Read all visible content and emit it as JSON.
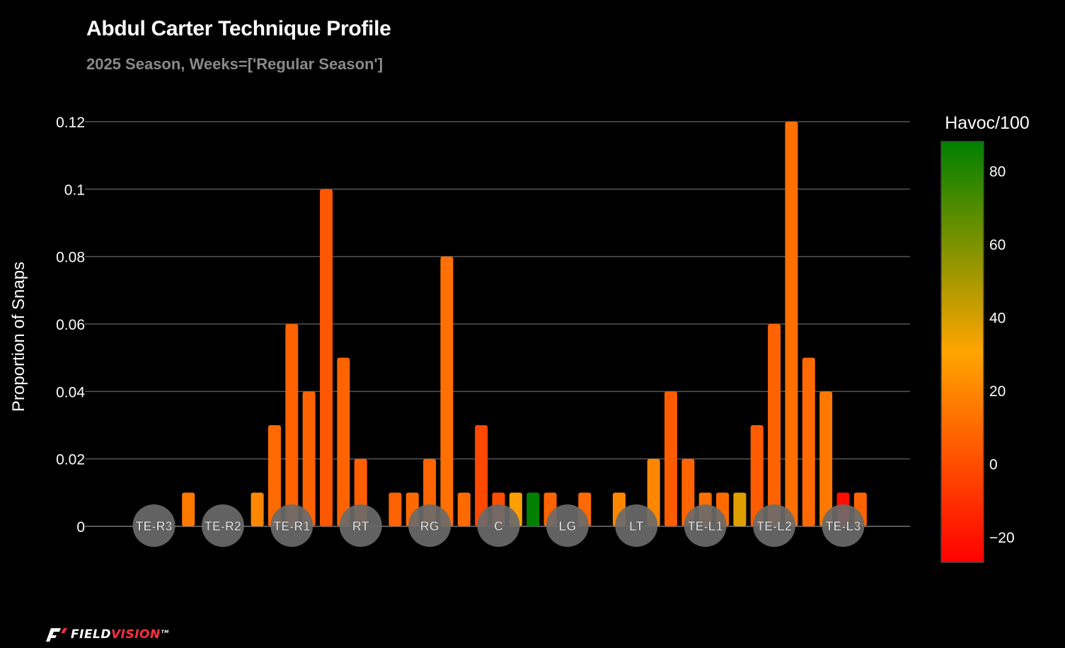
{
  "chart_data": {
    "type": "bar",
    "title": "Abdul Carter Technique Profile",
    "subtitle": "2025 Season, Weeks=['Regular Season']",
    "ylabel": "Proportion of Snaps",
    "ylim": [
      0,
      0.12
    ],
    "yticks": [
      {
        "value": 0,
        "label": "0"
      },
      {
        "value": 0.02,
        "label": "0.02"
      },
      {
        "value": 0.04,
        "label": "0.04"
      },
      {
        "value": 0.06,
        "label": "0.06"
      },
      {
        "value": 0.08,
        "label": "0.08"
      },
      {
        "value": 0.1,
        "label": "0.1"
      },
      {
        "value": 0.12,
        "label": "0.12"
      }
    ],
    "grid": true,
    "alignments": [
      "TE-R3",
      "TE-R2",
      "TE-R1",
      "RT",
      "RG",
      "C",
      "LG",
      "LT",
      "TE-L1",
      "TE-L2",
      "TE-L3"
    ],
    "bars": [
      {
        "pos": 0.5,
        "value": 0.01,
        "havoc": 15
      },
      {
        "pos": 1.5,
        "value": 0.01,
        "havoc": 20
      },
      {
        "pos": 1.75,
        "value": 0.03,
        "havoc": 10
      },
      {
        "pos": 2.0,
        "value": 0.06,
        "havoc": 7
      },
      {
        "pos": 2.25,
        "value": 0.04,
        "havoc": 7
      },
      {
        "pos": 2.5,
        "value": 0.1,
        "havoc": 3
      },
      {
        "pos": 2.75,
        "value": 0.05,
        "havoc": 8
      },
      {
        "pos": 3.0,
        "value": 0.02,
        "havoc": 6
      },
      {
        "pos": 3.5,
        "value": 0.01,
        "havoc": 7
      },
      {
        "pos": 3.75,
        "value": 0.01,
        "havoc": 10
      },
      {
        "pos": 4.0,
        "value": 0.02,
        "havoc": 8
      },
      {
        "pos": 4.25,
        "value": 0.08,
        "havoc": 12
      },
      {
        "pos": 4.5,
        "value": 0.01,
        "havoc": 10
      },
      {
        "pos": 4.75,
        "value": 0.03,
        "havoc": -2
      },
      {
        "pos": 5.0,
        "value": 0.01,
        "havoc": 0
      },
      {
        "pos": 5.25,
        "value": 0.01,
        "havoc": 28
      },
      {
        "pos": 5.5,
        "value": 0.01,
        "havoc": 88
      },
      {
        "pos": 5.75,
        "value": 0.01,
        "havoc": 8
      },
      {
        "pos": 6.25,
        "value": 0.01,
        "havoc": 10
      },
      {
        "pos": 6.75,
        "value": 0.01,
        "havoc": 20
      },
      {
        "pos": 7.25,
        "value": 0.02,
        "havoc": 20
      },
      {
        "pos": 7.5,
        "value": 0.04,
        "havoc": 5
      },
      {
        "pos": 7.75,
        "value": 0.02,
        "havoc": 8
      },
      {
        "pos": 8.0,
        "value": 0.01,
        "havoc": 12
      },
      {
        "pos": 8.25,
        "value": 0.01,
        "havoc": 10
      },
      {
        "pos": 8.5,
        "value": 0.01,
        "havoc": 38
      },
      {
        "pos": 8.75,
        "value": 0.03,
        "havoc": 5
      },
      {
        "pos": 9.0,
        "value": 0.06,
        "havoc": 8
      },
      {
        "pos": 9.25,
        "value": 0.12,
        "havoc": 12
      },
      {
        "pos": 9.5,
        "value": 0.05,
        "havoc": 10
      },
      {
        "pos": 9.75,
        "value": 0.04,
        "havoc": 15
      },
      {
        "pos": 10.0,
        "value": 0.01,
        "havoc": -22
      },
      {
        "pos": 10.25,
        "value": 0.01,
        "havoc": 8
      }
    ],
    "colorbar": {
      "title": "Havoc/100",
      "min": -27,
      "max": 88,
      "ticks": [
        {
          "value": 80,
          "label": "80"
        },
        {
          "value": 60,
          "label": "60"
        },
        {
          "value": 40,
          "label": "40"
        },
        {
          "value": 20,
          "label": "20"
        },
        {
          "value": 0,
          "label": "0"
        },
        {
          "value": -20,
          "label": "−20"
        }
      ],
      "colors": [
        "#ff0000",
        "#ffa500",
        "#008000"
      ]
    }
  },
  "logo": {
    "part_a": "FIELD",
    "part_b": "VISION",
    "tm": "TM"
  }
}
